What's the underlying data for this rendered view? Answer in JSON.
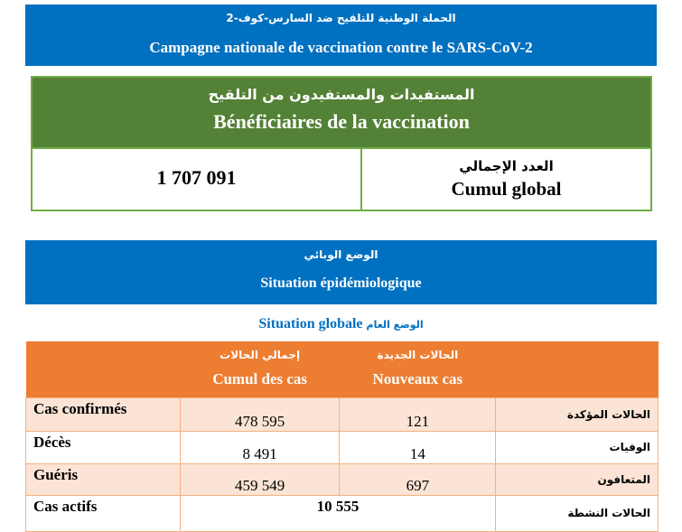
{
  "campaign": {
    "title_ar": "الحملة الوطنية للتلقيح ضد السارس-كوف-2",
    "title_fr": "Campagne nationale de vaccination contre le SARS-CoV-2"
  },
  "beneficiaries": {
    "title_ar": "المستفيدات والمستفيدون من التلقيح",
    "title_fr": "Bénéficiaires de la vaccination",
    "value": "1 707 091",
    "label_ar": "العدد الإجمالي",
    "label_fr": "Cumul global"
  },
  "epidemio": {
    "title_ar": "الوضع الوبائي",
    "title_fr": "Situation épidémiologique",
    "subtitle_fr": "Situation globale",
    "subtitle_ar": "الوضع العام"
  },
  "table": {
    "headers": [
      {
        "ar": "إجمالي الحالات",
        "fr": "Cumul des cas"
      },
      {
        "ar": "الحالات الجديدة",
        "fr": "Nouveaux cas"
      }
    ],
    "rows": [
      {
        "fr": "Cas confirmés",
        "cumul": "478 595",
        "new": "121",
        "ar": "الحالات المؤكدة"
      },
      {
        "fr": "Décès",
        "cumul": "8 491",
        "new": "14",
        "ar": "الوفيات"
      },
      {
        "fr": "Guéris",
        "cumul": "459 549",
        "new": "697",
        "ar": "المتعافون"
      },
      {
        "fr": "Cas actifs",
        "value": "10 555",
        "ar": "الحالات النشطة"
      }
    ]
  },
  "colors": {
    "blue": "#0070c0",
    "green": "#538135",
    "orange": "#ed7d31",
    "pink": "#fbe4d5"
  }
}
